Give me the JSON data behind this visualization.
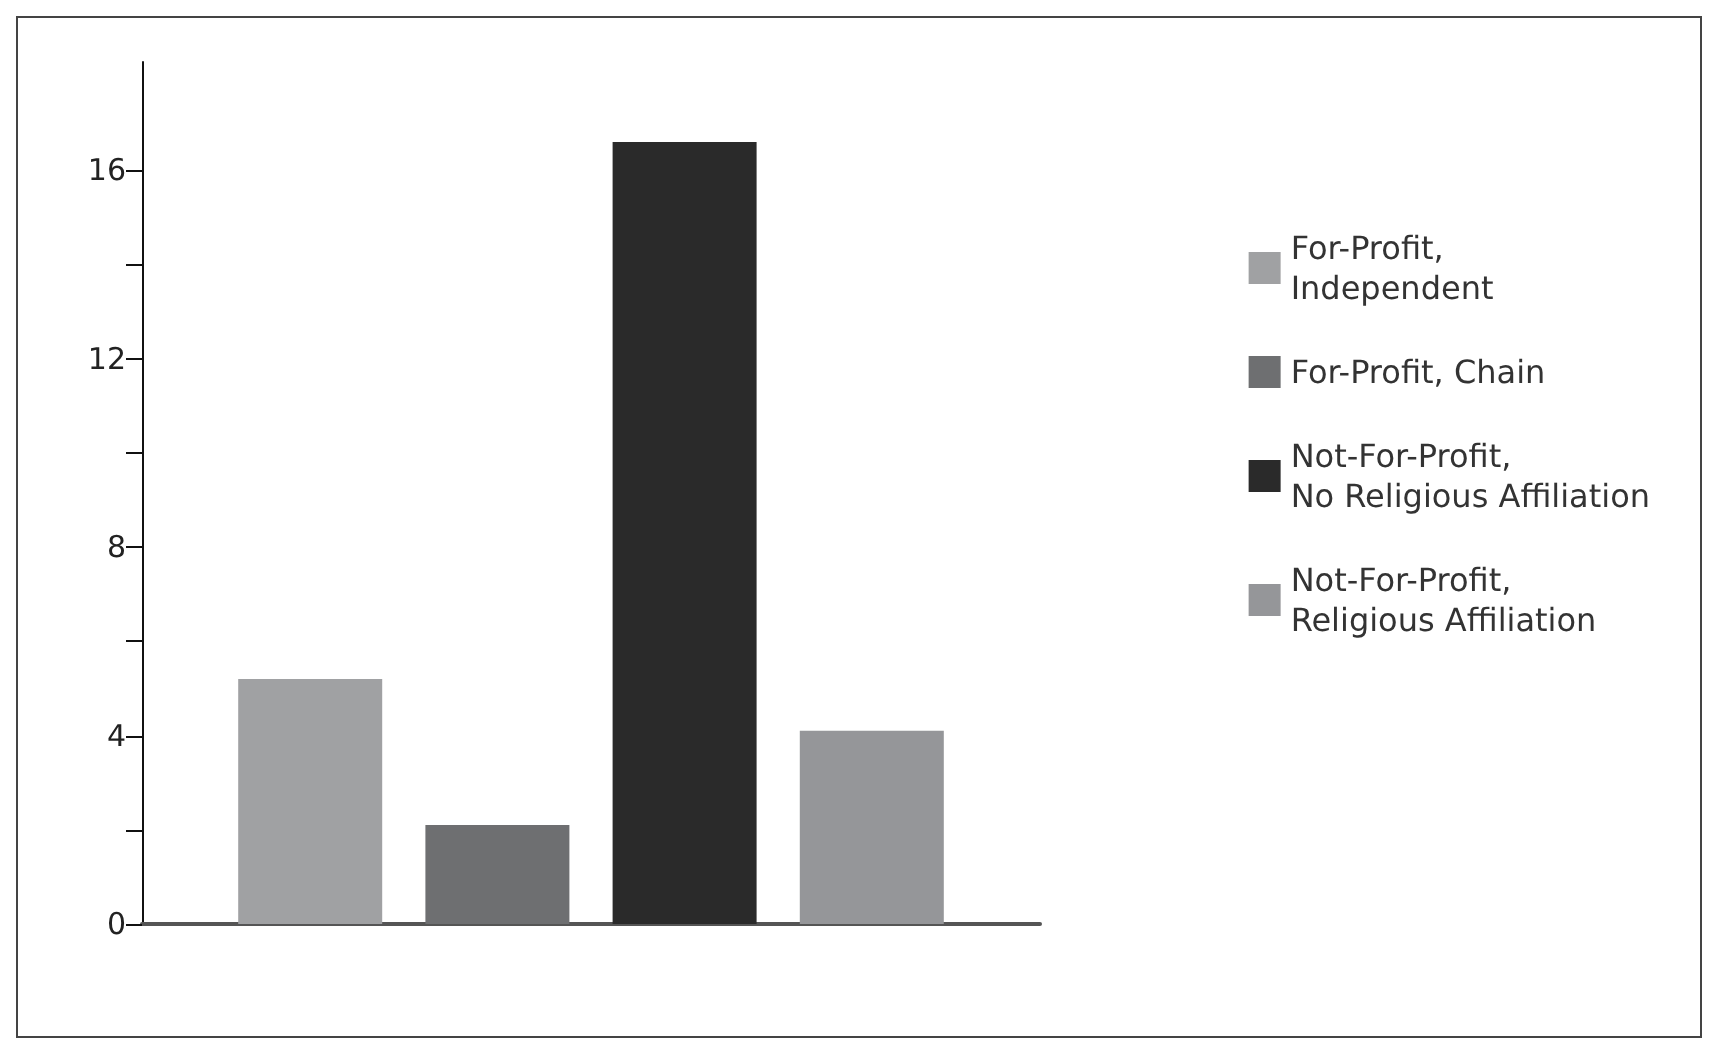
{
  "chart_data": {
    "type": "bar",
    "categories": [
      null
    ],
    "series": [
      {
        "name": "For-Profit, Independent",
        "color": "#a0a1a3",
        "values": [
          5.2
        ]
      },
      {
        "name": "For-Profit, Chain",
        "color": "#6e6f71",
        "values": [
          2.1
        ]
      },
      {
        "name": "Not-For-Profit, No Religious Affiliation",
        "color": "#2a2a2a",
        "values": [
          16.6
        ]
      },
      {
        "name": "Not-For-Profit, Religious Affiliation",
        "color": "#959699",
        "values": [
          4.1
        ]
      }
    ],
    "ylim": [
      0,
      18.3
    ],
    "yticks": [
      0,
      {
        "value": 2,
        "label": null
      },
      4,
      {
        "value": 6,
        "label": null
      },
      8,
      {
        "value": 10,
        "label": null
      },
      12,
      {
        "value": 14,
        "label": null
      },
      16
    ],
    "grid": false,
    "legend": "right"
  }
}
